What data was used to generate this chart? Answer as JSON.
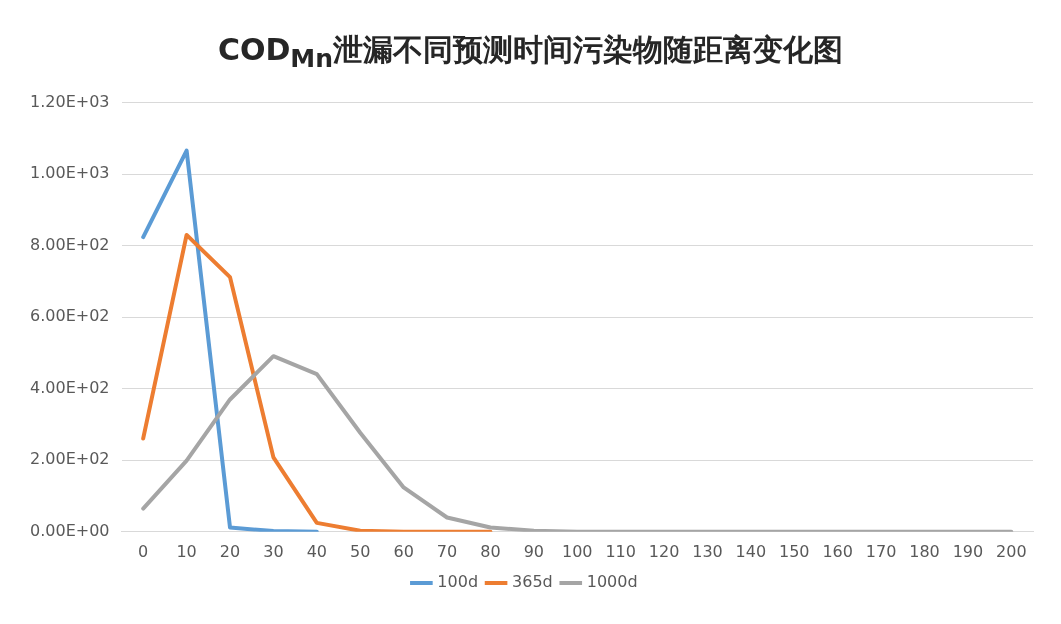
{
  "chart_data": {
    "type": "line",
    "title": "COD$_{Mn}$泄漏不同预测时间污染物随距离变化图",
    "categories": [
      "0",
      "10",
      "20",
      "30",
      "40",
      "50",
      "60",
      "70",
      "80",
      "90",
      "100",
      "110",
      "120",
      "130",
      "140",
      "150",
      "160",
      "170",
      "180",
      "190",
      "200"
    ],
    "series": [
      {
        "name": "100d",
        "color": "#5b9bd5",
        "values": [
          824,
          1066,
          12,
          2,
          0,
          null,
          null,
          null,
          null,
          null,
          null,
          null,
          null,
          null,
          null,
          null,
          null,
          null,
          null,
          null,
          null
        ]
      },
      {
        "name": "365d",
        "color": "#ed7d31",
        "values": [
          261,
          830,
          712,
          208,
          25,
          3,
          0,
          0,
          0,
          null,
          null,
          null,
          null,
          null,
          null,
          null,
          null,
          null,
          null,
          null,
          null
        ]
      },
      {
        "name": "1000d",
        "color": "#a5a5a5",
        "values": [
          65,
          199,
          370,
          491,
          441,
          277,
          124,
          40,
          12,
          3,
          0,
          0,
          0,
          0,
          0,
          0,
          0,
          0,
          0,
          0,
          0
        ]
      }
    ],
    "ylim": [
      0,
      1200
    ],
    "yticks": [
      {
        "value": 0,
        "label": "0.00E+00"
      },
      {
        "value": 200,
        "label": "2.00E+02"
      },
      {
        "value": 400,
        "label": "4.00E+02"
      },
      {
        "value": 600,
        "label": "6.00E+02"
      },
      {
        "value": 800,
        "label": "8.00E+02"
      },
      {
        "value": 1000,
        "label": "1.00E+03"
      },
      {
        "value": 1200,
        "label": "1.20E+03"
      }
    ],
    "grid": "y",
    "legend": "bottom",
    "marker": "none",
    "line_style": "solid"
  }
}
